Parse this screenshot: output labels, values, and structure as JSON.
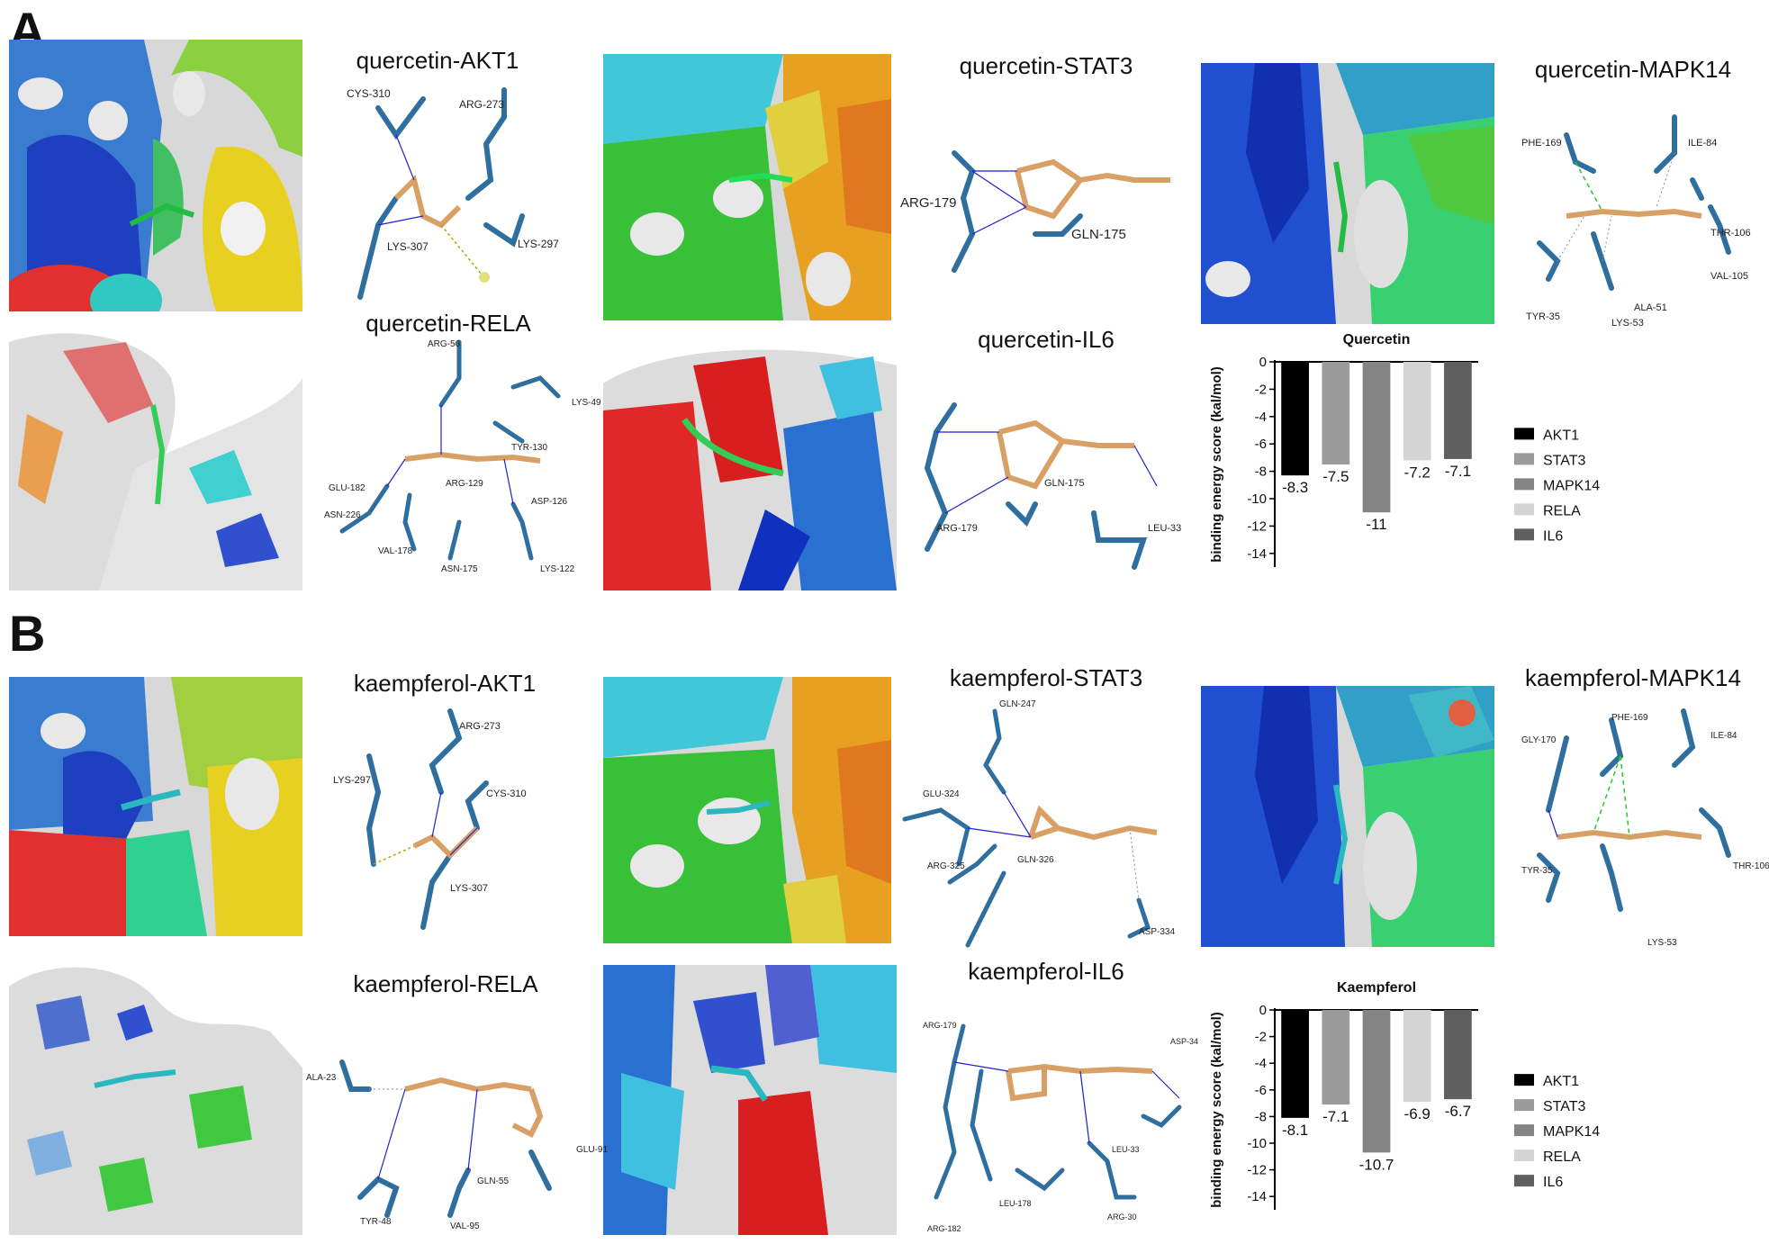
{
  "panels": [
    {
      "letter": "A",
      "titles": {
        "akt1": "quercetin-AKT1",
        "stat3": "quercetin-STAT3",
        "mapk14": "quercetin-MAPK14",
        "rela": "quercetin-RELA",
        "il6": "quercetin-IL6"
      },
      "residues": {
        "akt1": [
          "CYS-310",
          "ARG-273",
          "LYS-307",
          "LYS-297"
        ],
        "stat3": [
          "ARG-179",
          "GLN-175"
        ],
        "mapk14": [
          "PHE-169",
          "ILE-84",
          "THR-106",
          "TYR-35",
          "VAL-105",
          "ALA-51",
          "LYS-53"
        ],
        "rela": [
          "ARG-56",
          "LYS-49",
          "TYR-130",
          "GLU-182",
          "ARG-129",
          "ASP-126",
          "ASN-226",
          "VAL-178",
          "ASN-175",
          "LYS-122"
        ],
        "il6": [
          "GLN-175",
          "ARG-179",
          "LEU-33"
        ]
      }
    },
    {
      "letter": "B",
      "titles": {
        "akt1": "kaempferol-AKT1",
        "stat3": "kaempferol-STAT3",
        "mapk14": "kaempferol-MAPK14",
        "rela": "kaempferol-RELA",
        "il6": "kaempferol-IL6"
      },
      "residues": {
        "akt1": [
          "ARG-273",
          "LYS-297",
          "CYS-310",
          "LYS-307"
        ],
        "stat3": [
          "GLN-247",
          "GLU-324",
          "ARG-325",
          "GLN-326",
          "ASP-334"
        ],
        "mapk14": [
          "GLY-170",
          "PHE-169",
          "ILE-84",
          "TYR-35",
          "THR-106",
          "LYS-53"
        ],
        "rela": [
          "ALA-23",
          "GLU-91",
          "GLN-55",
          "TYR-48",
          "VAL-95"
        ],
        "il6": [
          "ARG-179",
          "ASP-34",
          "LEU-33",
          "LEU-178",
          "ARG-30",
          "ARG-182"
        ]
      }
    }
  ],
  "colors": {
    "stick_blue": "#2f6f9f",
    "ligand_orange": "#d9a066",
    "ligand_green": "#33cc55",
    "ligand_cyan": "#2ab8c0"
  },
  "chart_data": [
    {
      "type": "bar",
      "title": "Quercetin",
      "ylabel": "binding energy score (kal/mol)",
      "categories": [
        "AKT1",
        "STAT3",
        "MAPK14",
        "RELA",
        "IL6"
      ],
      "values": [
        -8.3,
        -7.5,
        -11,
        -7.2,
        -7.1
      ],
      "value_labels": [
        "-8.3",
        "-7.5",
        "-11",
        "-7.2",
        "-7.1"
      ],
      "colors": [
        "#000000",
        "#9b9b9b",
        "#848484",
        "#d4d4d4",
        "#5f5f5f"
      ],
      "ylim": [
        -15,
        0
      ],
      "yticks": [
        0,
        -2,
        -4,
        -6,
        -8,
        -10,
        -12,
        -14
      ],
      "ytick_labels": [
        "0",
        "-2",
        "-4",
        "-6",
        "-8",
        "-10",
        "-12",
        "-14"
      ],
      "legend": "right"
    },
    {
      "type": "bar",
      "title": "Kaempferol",
      "ylabel": "binding energy score (kal/mol)",
      "categories": [
        "AKT1",
        "STAT3",
        "MAPK14",
        "RELA",
        "IL6"
      ],
      "values": [
        -8.1,
        -7.1,
        -10.7,
        -6.9,
        -6.7
      ],
      "value_labels": [
        "-8.1",
        "-7.1",
        "-10.7",
        "-6.9",
        "-6.7"
      ],
      "colors": [
        "#000000",
        "#9b9b9b",
        "#848484",
        "#d4d4d4",
        "#5f5f5f"
      ],
      "ylim": [
        -15,
        0
      ],
      "yticks": [
        0,
        -2,
        -4,
        -6,
        -8,
        -10,
        -12,
        -14
      ],
      "ytick_labels": [
        "0",
        "-2",
        "-4",
        "-6",
        "-8",
        "-10",
        "-12",
        "-14"
      ],
      "legend": "right"
    }
  ]
}
